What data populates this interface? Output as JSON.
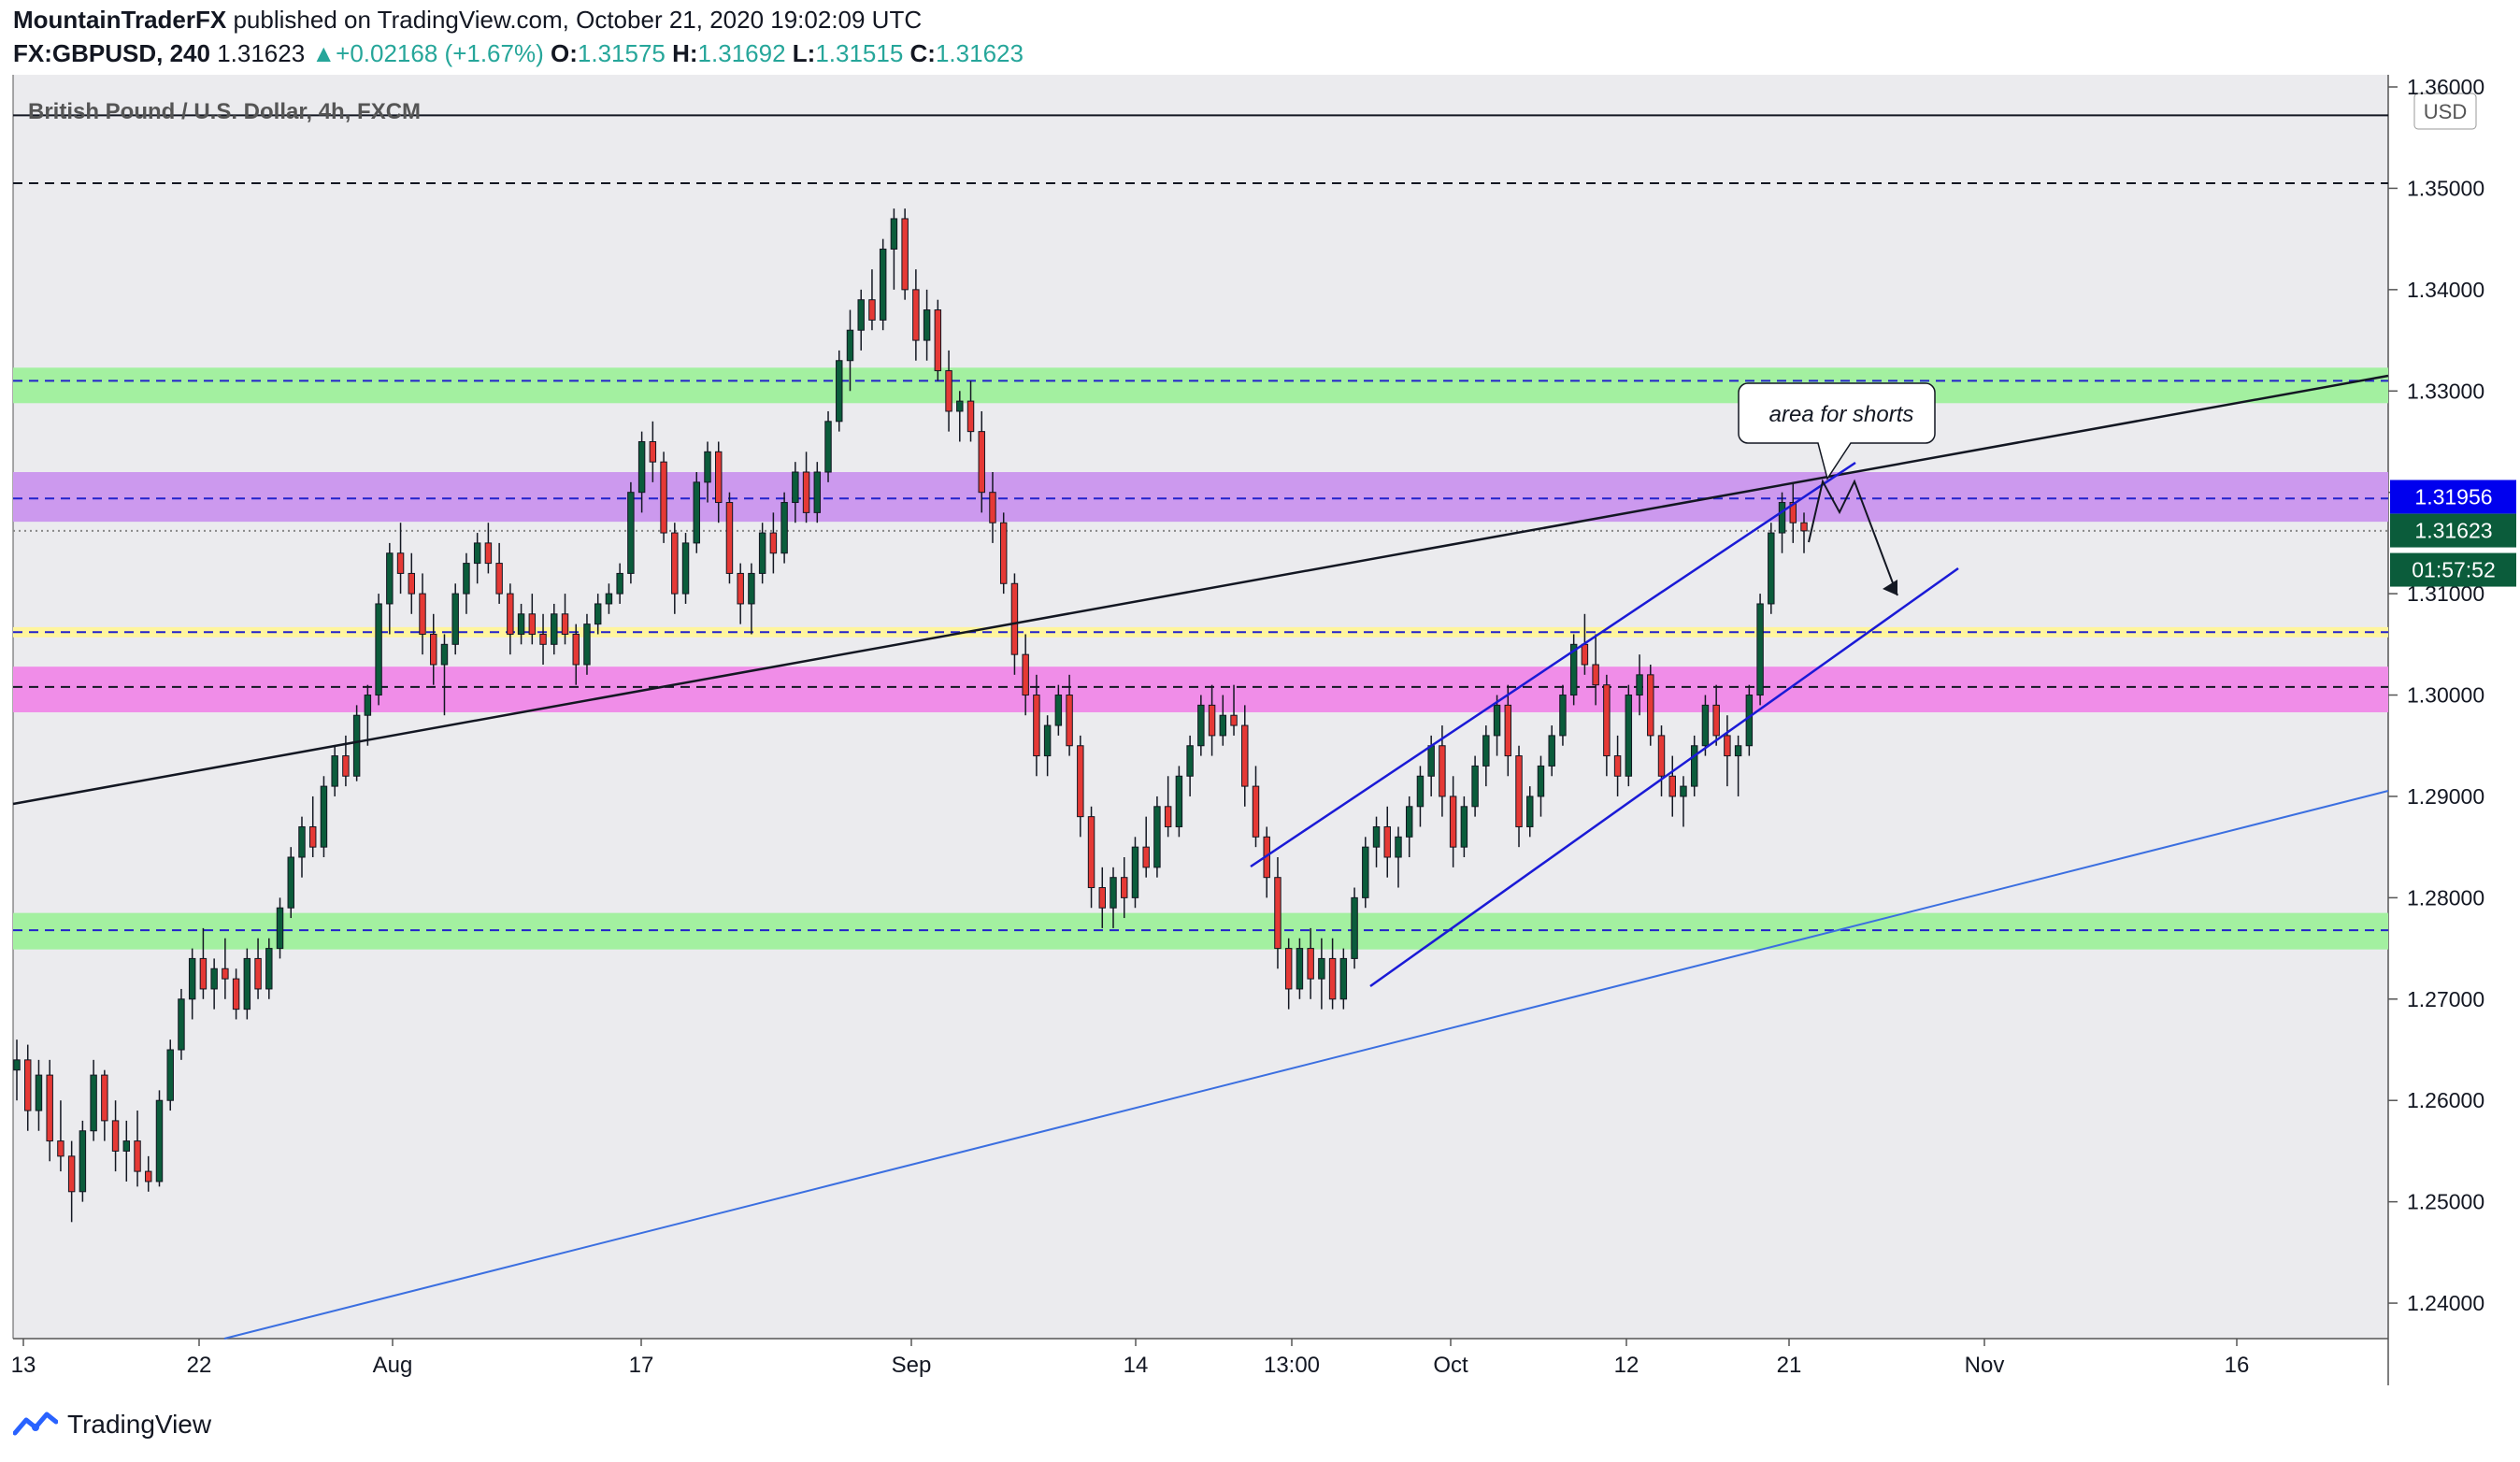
{
  "header": {
    "author": "MountainTraderFX",
    "published_text": " published on TradingView.com, October 21, 2020 19:02:09 UTC",
    "symbol": "FX:GBPUSD, 240",
    "last": "1.31623",
    "change_arrow": "▲",
    "change": "+0.02168 (+1.67%)",
    "o_label": "O:",
    "o_value": "1.31575",
    "h_label": "H:",
    "h_value": "1.31692",
    "l_label": "L:",
    "l_value": "1.31515",
    "c_label": "C:",
    "c_value": "1.31623"
  },
  "footer": {
    "brand": "TradingView",
    "logo_icon": "tradingview-logo-icon"
  },
  "chart_data": {
    "type": "candlestick",
    "title": "British Pound / U.S. Dollar, 4h, FXCM",
    "currency": "USD",
    "ylim": [
      1.2365,
      1.3612
    ],
    "y_ticks": [
      "1.36000",
      "1.35000",
      "1.34000",
      "1.33000",
      "1.32000",
      "1.31000",
      "1.30000",
      "1.29000",
      "1.28000",
      "1.27000",
      "1.26000",
      "1.25000",
      "1.24000"
    ],
    "x_ticks": [
      "13",
      "22",
      "Aug",
      "17",
      "Sep",
      "14",
      "13:00",
      "Oct",
      "12",
      "21",
      "Nov",
      "16"
    ],
    "price_labels": [
      {
        "text": "1.31956",
        "bg": "#0000ee",
        "fg": "#ffffff"
      },
      {
        "text": "1.31623",
        "bg": "#0b5c3b",
        "fg": "#ffffff"
      },
      {
        "text": "01:57:52",
        "bg": "#0b5c3b",
        "fg": "#ffffff"
      }
    ],
    "annotation": "area for shorts",
    "zones": [
      {
        "name": "green-zone-upper",
        "low": 1.3288,
        "high": 1.3323,
        "color": "#a3f0a0"
      },
      {
        "name": "purple-zone",
        "low": 1.3171,
        "high": 1.322,
        "color": "#cc99ee"
      },
      {
        "name": "magenta-zone",
        "low": 1.2983,
        "high": 1.3028,
        "color": "#f08de8"
      },
      {
        "name": "green-zone-lower",
        "low": 1.2749,
        "high": 1.2785,
        "color": "#a3f0a0"
      },
      {
        "name": "yellow-zone",
        "low": 1.3057,
        "high": 1.3067,
        "color": "#fff59d"
      }
    ],
    "levels": [
      {
        "price": 1.3505,
        "color": "#131722",
        "dash": true
      },
      {
        "price": 1.331,
        "color": "#2222cc",
        "dash": true
      },
      {
        "price": 1.3194,
        "color": "#2222cc",
        "dash": true
      },
      {
        "price": 1.3162,
        "color": "#888888",
        "dash": "dot"
      },
      {
        "price": 1.3062,
        "color": "#2222cc",
        "dash": true
      },
      {
        "price": 1.3008,
        "color": "#131722",
        "dash": true
      },
      {
        "price": 1.2768,
        "color": "#2222cc",
        "dash": true
      },
      {
        "price": 1.3572,
        "color": "#131722",
        "dash": false
      }
    ],
    "candles": [
      [
        1.263,
        1.266,
        1.26,
        1.264
      ],
      [
        1.264,
        1.2655,
        1.257,
        1.259
      ],
      [
        1.259,
        1.264,
        1.257,
        1.2625
      ],
      [
        1.2625,
        1.264,
        1.254,
        1.256
      ],
      [
        1.256,
        1.26,
        1.253,
        1.2545
      ],
      [
        1.2545,
        1.256,
        1.248,
        1.251
      ],
      [
        1.251,
        1.258,
        1.25,
        1.257
      ],
      [
        1.257,
        1.264,
        1.256,
        1.2625
      ],
      [
        1.2625,
        1.263,
        1.256,
        1.258
      ],
      [
        1.258,
        1.26,
        1.253,
        1.255
      ],
      [
        1.255,
        1.258,
        1.252,
        1.256
      ],
      [
        1.256,
        1.259,
        1.2515,
        1.253
      ],
      [
        1.253,
        1.2545,
        1.251,
        1.252
      ],
      [
        1.252,
        1.261,
        1.2515,
        1.26
      ],
      [
        1.26,
        1.266,
        1.259,
        1.265
      ],
      [
        1.265,
        1.271,
        1.264,
        1.27
      ],
      [
        1.27,
        1.275,
        1.268,
        1.274
      ],
      [
        1.274,
        1.277,
        1.27,
        1.271
      ],
      [
        1.271,
        1.274,
        1.269,
        1.273
      ],
      [
        1.273,
        1.276,
        1.27,
        1.272
      ],
      [
        1.272,
        1.273,
        1.268,
        1.269
      ],
      [
        1.269,
        1.275,
        1.268,
        1.274
      ],
      [
        1.274,
        1.276,
        1.27,
        1.271
      ],
      [
        1.271,
        1.276,
        1.27,
        1.275
      ],
      [
        1.275,
        1.28,
        1.274,
        1.279
      ],
      [
        1.279,
        1.285,
        1.278,
        1.284
      ],
      [
        1.284,
        1.288,
        1.282,
        1.287
      ],
      [
        1.287,
        1.29,
        1.284,
        1.285
      ],
      [
        1.285,
        1.292,
        1.284,
        1.291
      ],
      [
        1.291,
        1.295,
        1.29,
        1.294
      ],
      [
        1.294,
        1.296,
        1.291,
        1.292
      ],
      [
        1.292,
        1.299,
        1.2915,
        1.298
      ],
      [
        1.298,
        1.301,
        1.295,
        1.3
      ],
      [
        1.3,
        1.31,
        1.299,
        1.309
      ],
      [
        1.309,
        1.315,
        1.306,
        1.314
      ],
      [
        1.314,
        1.317,
        1.31,
        1.312
      ],
      [
        1.312,
        1.314,
        1.308,
        1.31
      ],
      [
        1.31,
        1.312,
        1.304,
        1.306
      ],
      [
        1.306,
        1.308,
        1.301,
        1.303
      ],
      [
        1.303,
        1.306,
        1.298,
        1.305
      ],
      [
        1.305,
        1.311,
        1.304,
        1.31
      ],
      [
        1.31,
        1.314,
        1.308,
        1.313
      ],
      [
        1.313,
        1.316,
        1.311,
        1.315
      ],
      [
        1.315,
        1.317,
        1.312,
        1.313
      ],
      [
        1.313,
        1.315,
        1.309,
        1.31
      ],
      [
        1.31,
        1.311,
        1.304,
        1.306
      ],
      [
        1.306,
        1.309,
        1.305,
        1.308
      ],
      [
        1.308,
        1.31,
        1.305,
        1.306
      ],
      [
        1.306,
        1.308,
        1.303,
        1.305
      ],
      [
        1.305,
        1.309,
        1.304,
        1.308
      ],
      [
        1.308,
        1.31,
        1.305,
        1.306
      ],
      [
        1.306,
        1.307,
        1.301,
        1.303
      ],
      [
        1.303,
        1.308,
        1.302,
        1.307
      ],
      [
        1.307,
        1.31,
        1.306,
        1.309
      ],
      [
        1.309,
        1.311,
        1.308,
        1.31
      ],
      [
        1.31,
        1.313,
        1.309,
        1.312
      ],
      [
        1.312,
        1.321,
        1.311,
        1.32
      ],
      [
        1.32,
        1.326,
        1.318,
        1.325
      ],
      [
        1.325,
        1.327,
        1.321,
        1.323
      ],
      [
        1.323,
        1.324,
        1.315,
        1.316
      ],
      [
        1.316,
        1.317,
        1.308,
        1.31
      ],
      [
        1.31,
        1.316,
        1.309,
        1.315
      ],
      [
        1.315,
        1.322,
        1.314,
        1.321
      ],
      [
        1.321,
        1.325,
        1.319,
        1.324
      ],
      [
        1.324,
        1.325,
        1.317,
        1.319
      ],
      [
        1.319,
        1.32,
        1.311,
        1.312
      ],
      [
        1.312,
        1.313,
        1.307,
        1.309
      ],
      [
        1.309,
        1.313,
        1.306,
        1.312
      ],
      [
        1.312,
        1.317,
        1.311,
        1.316
      ],
      [
        1.316,
        1.318,
        1.312,
        1.314
      ],
      [
        1.314,
        1.32,
        1.313,
        1.319
      ],
      [
        1.319,
        1.323,
        1.317,
        1.322
      ],
      [
        1.322,
        1.324,
        1.317,
        1.318
      ],
      [
        1.318,
        1.323,
        1.317,
        1.322
      ],
      [
        1.322,
        1.328,
        1.321,
        1.327
      ],
      [
        1.327,
        1.334,
        1.326,
        1.333
      ],
      [
        1.333,
        1.338,
        1.33,
        1.336
      ],
      [
        1.336,
        1.34,
        1.334,
        1.339
      ],
      [
        1.339,
        1.342,
        1.336,
        1.337
      ],
      [
        1.337,
        1.345,
        1.336,
        1.344
      ],
      [
        1.344,
        1.348,
        1.34,
        1.347
      ],
      [
        1.347,
        1.348,
        1.339,
        1.34
      ],
      [
        1.34,
        1.342,
        1.333,
        1.335
      ],
      [
        1.335,
        1.34,
        1.333,
        1.338
      ],
      [
        1.338,
        1.339,
        1.331,
        1.332
      ],
      [
        1.332,
        1.334,
        1.326,
        1.328
      ],
      [
        1.328,
        1.33,
        1.325,
        1.329
      ],
      [
        1.329,
        1.331,
        1.325,
        1.326
      ],
      [
        1.326,
        1.328,
        1.318,
        1.32
      ],
      [
        1.32,
        1.322,
        1.315,
        1.317
      ],
      [
        1.317,
        1.318,
        1.31,
        1.311
      ],
      [
        1.311,
        1.312,
        1.302,
        1.304
      ],
      [
        1.304,
        1.306,
        1.298,
        1.3
      ],
      [
        1.3,
        1.302,
        1.292,
        1.294
      ],
      [
        1.294,
        1.298,
        1.292,
        1.297
      ],
      [
        1.297,
        1.301,
        1.296,
        1.3
      ],
      [
        1.3,
        1.302,
        1.294,
        1.295
      ],
      [
        1.295,
        1.296,
        1.286,
        1.288
      ],
      [
        1.288,
        1.289,
        1.279,
        1.281
      ],
      [
        1.281,
        1.283,
        1.277,
        1.279
      ],
      [
        1.279,
        1.283,
        1.277,
        1.282
      ],
      [
        1.282,
        1.284,
        1.278,
        1.28
      ],
      [
        1.28,
        1.286,
        1.279,
        1.285
      ],
      [
        1.285,
        1.288,
        1.282,
        1.283
      ],
      [
        1.283,
        1.29,
        1.282,
        1.289
      ],
      [
        1.289,
        1.292,
        1.286,
        1.287
      ],
      [
        1.287,
        1.293,
        1.286,
        1.292
      ],
      [
        1.292,
        1.296,
        1.29,
        1.295
      ],
      [
        1.295,
        1.3,
        1.294,
        1.299
      ],
      [
        1.299,
        1.301,
        1.294,
        1.296
      ],
      [
        1.296,
        1.3,
        1.295,
        1.298
      ],
      [
        1.298,
        1.301,
        1.296,
        1.297
      ],
      [
        1.297,
        1.299,
        1.289,
        1.291
      ],
      [
        1.291,
        1.293,
        1.285,
        1.286
      ],
      [
        1.286,
        1.287,
        1.28,
        1.282
      ],
      [
        1.282,
        1.284,
        1.273,
        1.275
      ],
      [
        1.275,
        1.276,
        1.269,
        1.271
      ],
      [
        1.271,
        1.276,
        1.27,
        1.275
      ],
      [
        1.275,
        1.277,
        1.27,
        1.272
      ],
      [
        1.272,
        1.276,
        1.269,
        1.274
      ],
      [
        1.274,
        1.276,
        1.269,
        1.27
      ],
      [
        1.27,
        1.275,
        1.269,
        1.274
      ],
      [
        1.274,
        1.281,
        1.273,
        1.28
      ],
      [
        1.28,
        1.286,
        1.279,
        1.285
      ],
      [
        1.285,
        1.288,
        1.283,
        1.287
      ],
      [
        1.287,
        1.289,
        1.282,
        1.284
      ],
      [
        1.284,
        1.287,
        1.281,
        1.286
      ],
      [
        1.286,
        1.29,
        1.284,
        1.289
      ],
      [
        1.289,
        1.293,
        1.287,
        1.292
      ],
      [
        1.292,
        1.296,
        1.29,
        1.295
      ],
      [
        1.295,
        1.297,
        1.288,
        1.29
      ],
      [
        1.29,
        1.292,
        1.283,
        1.285
      ],
      [
        1.285,
        1.29,
        1.284,
        1.289
      ],
      [
        1.289,
        1.294,
        1.288,
        1.293
      ],
      [
        1.293,
        1.297,
        1.291,
        1.296
      ],
      [
        1.296,
        1.3,
        1.294,
        1.299
      ],
      [
        1.299,
        1.301,
        1.292,
        1.294
      ],
      [
        1.294,
        1.295,
        1.285,
        1.287
      ],
      [
        1.287,
        1.291,
        1.286,
        1.29
      ],
      [
        1.29,
        1.294,
        1.288,
        1.293
      ],
      [
        1.293,
        1.297,
        1.292,
        1.296
      ],
      [
        1.296,
        1.301,
        1.295,
        1.3
      ],
      [
        1.3,
        1.306,
        1.299,
        1.305
      ],
      [
        1.305,
        1.308,
        1.302,
        1.303
      ],
      [
        1.303,
        1.306,
        1.299,
        1.301
      ],
      [
        1.301,
        1.302,
        1.292,
        1.294
      ],
      [
        1.294,
        1.296,
        1.29,
        1.292
      ],
      [
        1.292,
        1.301,
        1.291,
        1.3
      ],
      [
        1.3,
        1.304,
        1.298,
        1.302
      ],
      [
        1.302,
        1.303,
        1.295,
        1.296
      ],
      [
        1.296,
        1.297,
        1.29,
        1.292
      ],
      [
        1.292,
        1.294,
        1.288,
        1.29
      ],
      [
        1.29,
        1.292,
        1.287,
        1.291
      ],
      [
        1.291,
        1.296,
        1.29,
        1.295
      ],
      [
        1.295,
        1.3,
        1.294,
        1.299
      ],
      [
        1.299,
        1.301,
        1.295,
        1.296
      ],
      [
        1.296,
        1.298,
        1.291,
        1.294
      ],
      [
        1.294,
        1.296,
        1.29,
        1.295
      ],
      [
        1.295,
        1.301,
        1.294,
        1.3
      ],
      [
        1.3,
        1.31,
        1.299,
        1.309
      ],
      [
        1.309,
        1.317,
        1.308,
        1.316
      ],
      [
        1.316,
        1.32,
        1.314,
        1.319
      ],
      [
        1.319,
        1.321,
        1.315,
        1.317
      ],
      [
        1.317,
        1.318,
        1.314,
        1.3162
      ]
    ]
  }
}
